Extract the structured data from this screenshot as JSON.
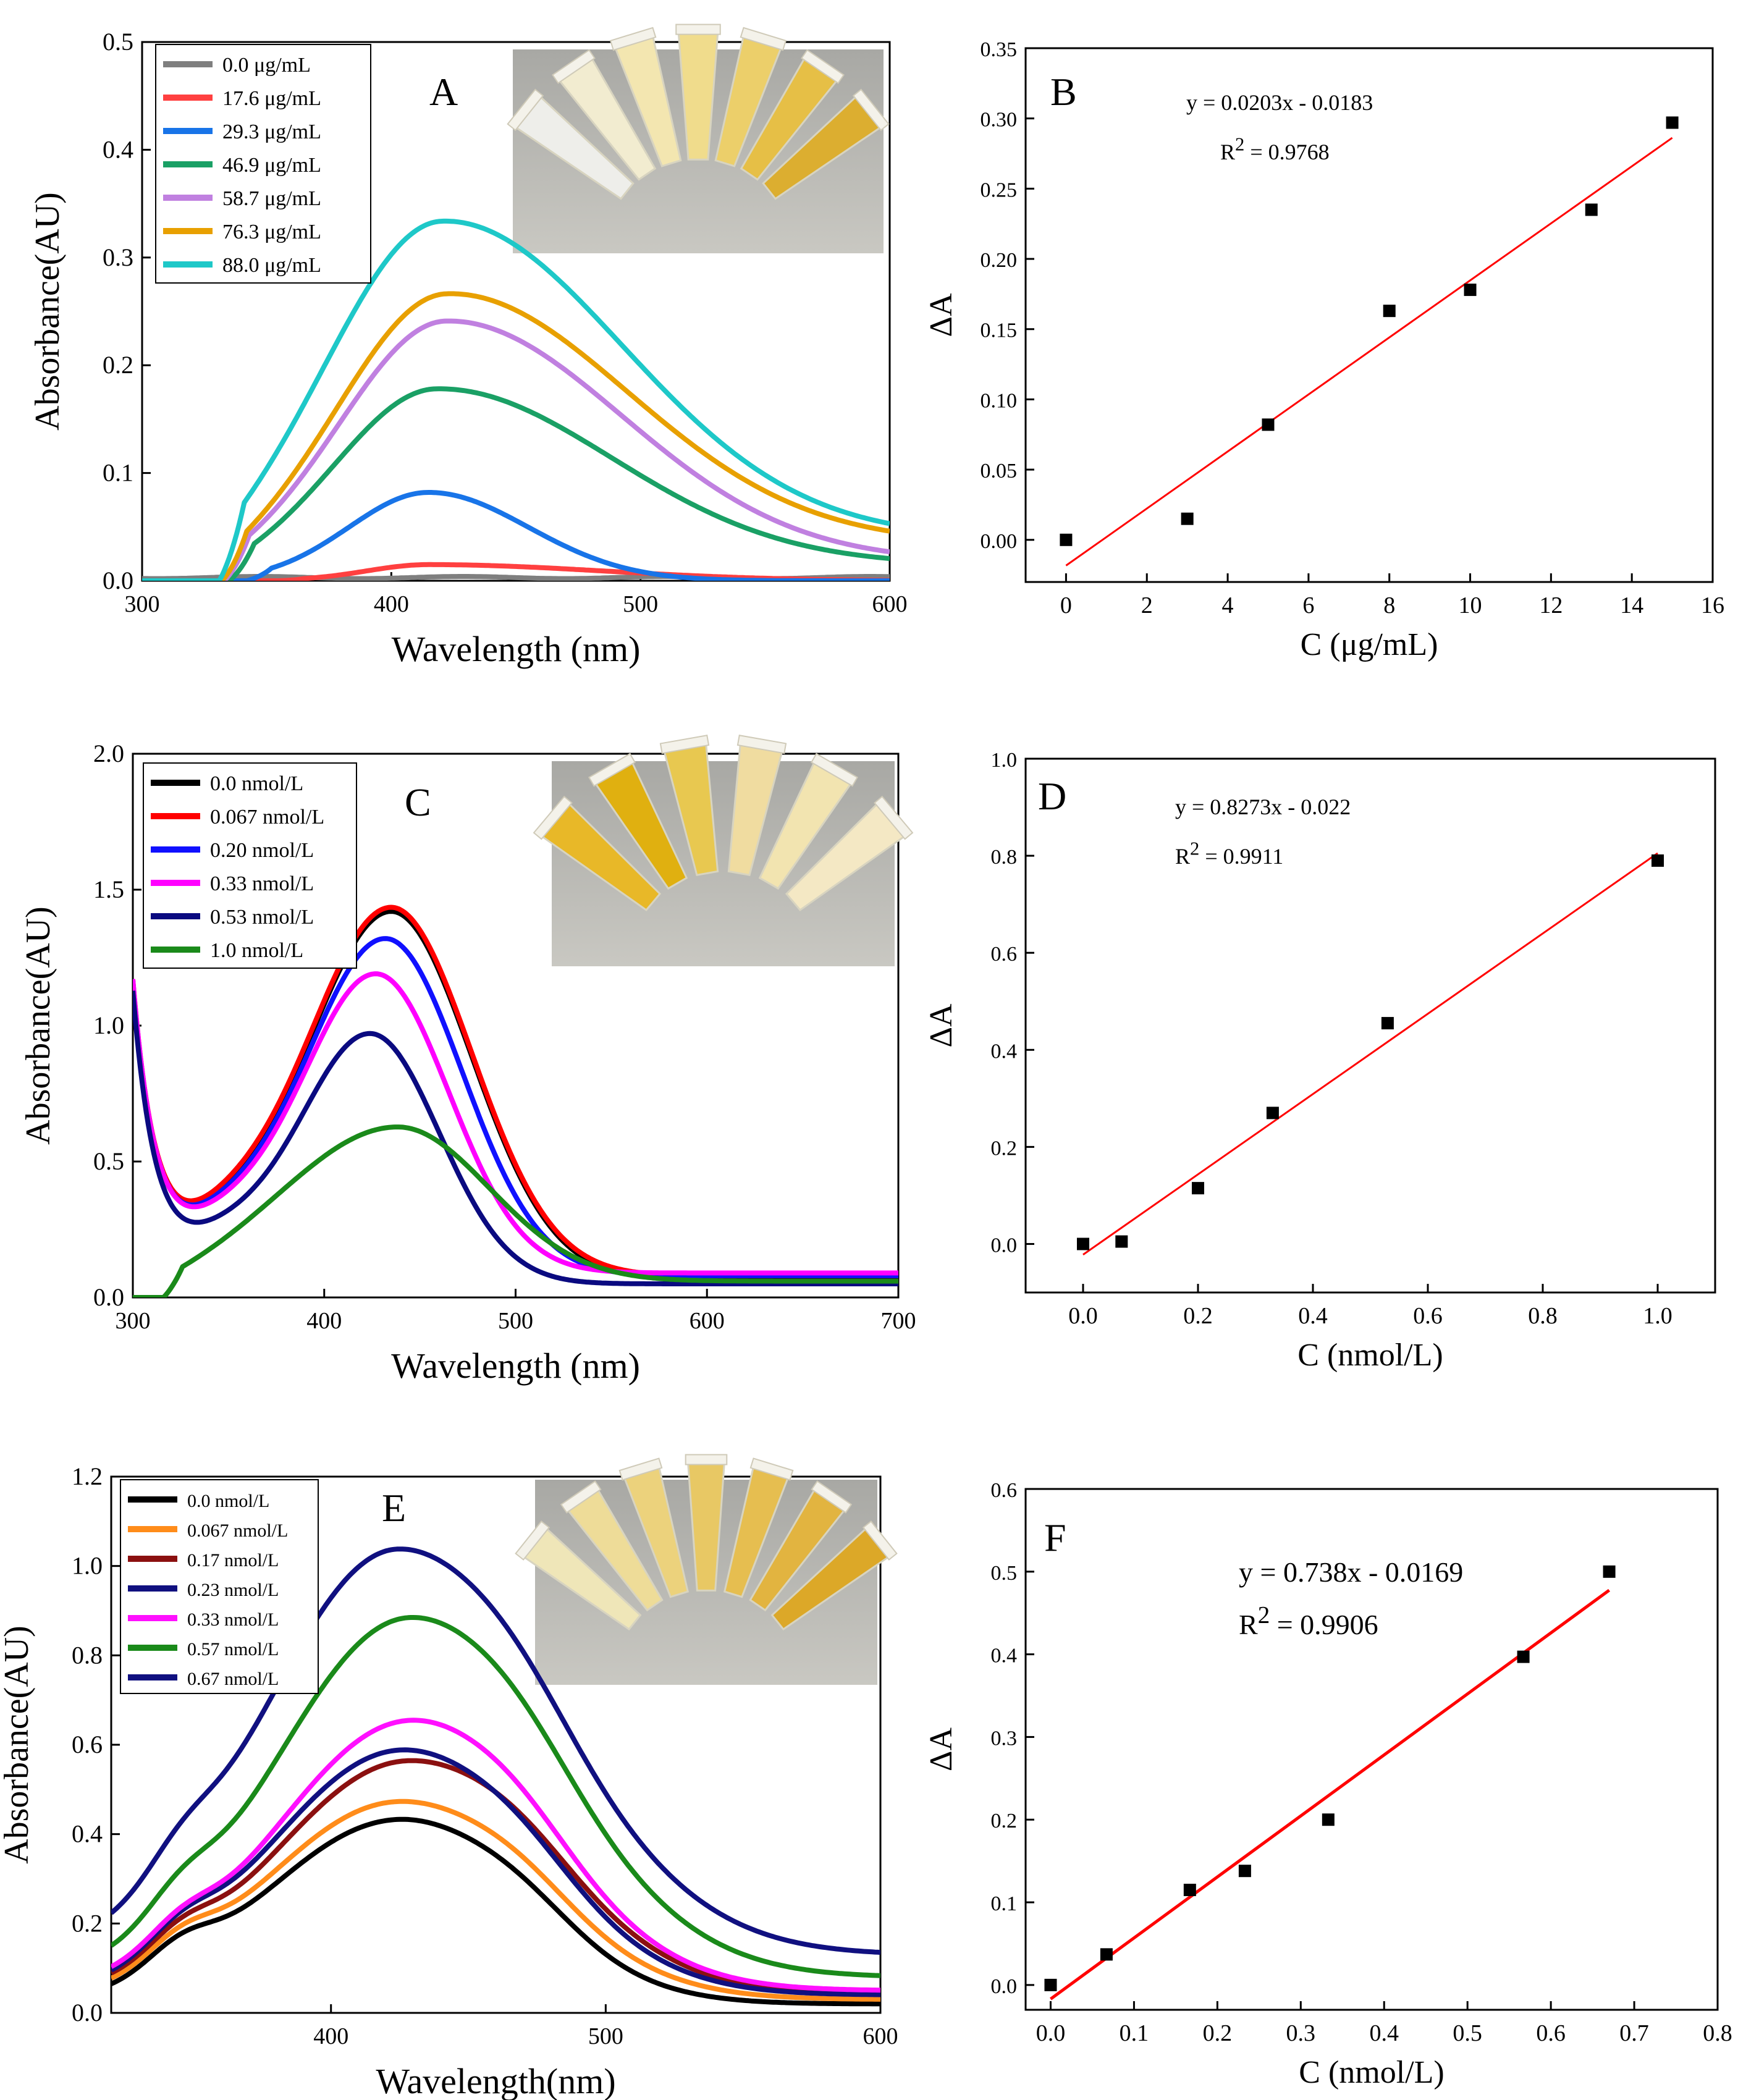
{
  "chart_data": [
    {
      "panel": "A",
      "type": "line",
      "xlabel": "Wavelength (nm)",
      "ylabel": "Absorbance(AU)",
      "xlim": [
        300,
        600
      ],
      "ylim": [
        0,
        0.5
      ],
      "xticks": [
        "300",
        "400",
        "500",
        "600"
      ],
      "yticks": [
        "0.0",
        "0.1",
        "0.2",
        "0.3",
        "0.4",
        "0.5"
      ],
      "legend_position": "top-left",
      "inset": "photo of sample tubes",
      "series": [
        {
          "name": "0.0 μg/mL",
          "color": "#7f7f7f",
          "shape": "flat",
          "start": 300,
          "peak_x": 400,
          "peak": 0.003,
          "sigL": 60,
          "sigR": 150,
          "base": 0.0
        },
        {
          "name": "17.6 μg/mL",
          "color": "#ff4040",
          "shape": "onset",
          "start": 355,
          "peak_x": 415,
          "peak": 0.015,
          "sigL": 25,
          "sigR": 70,
          "base": 0.0
        },
        {
          "name": "29.3 μg/mL",
          "color": "#1874e8",
          "shape": "onset",
          "start": 342,
          "peak_x": 415,
          "peak": 0.082,
          "sigL": 32,
          "sigR": 40,
          "base": 0.0
        },
        {
          "name": "46.9 μg/mL",
          "color": "#1aa065",
          "shape": "onset",
          "start": 335,
          "peak_x": 418,
          "peak": 0.165,
          "sigL": 40,
          "sigR": 70,
          "base": 0.015
        },
        {
          "name": "58.7 μg/mL",
          "color": "#c080e0",
          "shape": "onset",
          "start": 333,
          "peak_x": 422,
          "peak": 0.225,
          "sigL": 42,
          "sigR": 70,
          "base": 0.018
        },
        {
          "name": "76.3 μg/mL",
          "color": "#e8a000",
          "shape": "onset",
          "start": 332,
          "peak_x": 422,
          "peak": 0.235,
          "sigL": 42,
          "sigR": 72,
          "base": 0.035
        },
        {
          "name": "88.0 μg/mL",
          "color": "#1ec8c8",
          "shape": "onset",
          "start": 331,
          "peak_x": 420,
          "peak": 0.298,
          "sigL": 45,
          "sigR": 72,
          "base": 0.04
        }
      ]
    },
    {
      "panel": "B",
      "type": "scatter",
      "xlabel": "C (μg/mL)",
      "ylabel": "ΔA",
      "xlim": [
        -1,
        16
      ],
      "ylim": [
        -0.03,
        0.35
      ],
      "xticks": [
        "0",
        "2",
        "4",
        "6",
        "8",
        "10",
        "12",
        "14",
        "16"
      ],
      "yticks": [
        "0.00",
        "0.05",
        "0.10",
        "0.15",
        "0.20",
        "0.25",
        "0.30",
        "0.35"
      ],
      "equation": "y = 0.0203x - 0.0183",
      "r2_prefix": "R",
      "r2_sup": "2",
      "r2_value": " = 0.9768",
      "fit": {
        "slope": 0.0203,
        "intercept": -0.0183,
        "x_range": [
          0,
          15
        ],
        "color": "#ff0000"
      },
      "points": [
        [
          0,
          0.0
        ],
        [
          3,
          0.015
        ],
        [
          5,
          0.082
        ],
        [
          8,
          0.163
        ],
        [
          10,
          0.178
        ],
        [
          13,
          0.235
        ],
        [
          15,
          0.297
        ]
      ]
    },
    {
      "panel": "C",
      "type": "line",
      "xlabel": "Wavelength (nm)",
      "ylabel": "Absorbance(AU)",
      "xlim": [
        300,
        700
      ],
      "ylim": [
        0,
        2.0
      ],
      "xticks": [
        "300",
        "400",
        "500",
        "600",
        "700"
      ],
      "yticks": [
        "0.0",
        "0.5",
        "1.0",
        "1.5",
        "2.0"
      ],
      "legend_position": "top-left",
      "inset": "photo of sample tubes",
      "series": [
        {
          "name": "0.0 nmol/L",
          "color": "#000000",
          "shape": "dip",
          "start": 300,
          "peak_x": 435,
          "peak": 1.35,
          "sigL": 45,
          "sigR": 42,
          "base": 0.07
        },
        {
          "name": "0.067 nmol/L",
          "color": "#ff0000",
          "shape": "dip",
          "start": 300,
          "peak_x": 435,
          "peak": 1.355,
          "sigL": 45,
          "sigR": 42,
          "base": 0.08
        },
        {
          "name": "0.20 nmol/L",
          "color": "#1010ff",
          "shape": "dip",
          "start": 300,
          "peak_x": 432,
          "peak": 1.24,
          "sigL": 43,
          "sigR": 40,
          "base": 0.08
        },
        {
          "name": "0.33 nmol/L",
          "color": "#ff00ff",
          "shape": "dip",
          "start": 300,
          "peak_x": 427,
          "peak": 1.1,
          "sigL": 40,
          "sigR": 38,
          "base": 0.09
        },
        {
          "name": "0.53 nmol/L",
          "color": "#0a0a80",
          "shape": "dip",
          "start": 300,
          "peak_x": 424,
          "peak": 0.92,
          "sigL": 38,
          "sigR": 36,
          "base": 0.05
        },
        {
          "name": "1.0 nmol/L",
          "color": "#1a8a1a",
          "shape": "onset",
          "start": 316,
          "peak_x": 438,
          "peak": 0.57,
          "sigL": 60,
          "sigR": 48,
          "base": 0.06
        }
      ]
    },
    {
      "panel": "D",
      "type": "scatter",
      "xlabel": "C (nmol/L)",
      "ylabel": "ΔA",
      "xlim": [
        -0.1,
        1.1
      ],
      "ylim": [
        -0.1,
        1.0
      ],
      "xticks": [
        "0.0",
        "0.2",
        "0.4",
        "0.6",
        "0.8",
        "1.0"
      ],
      "yticks": [
        "0.0",
        "0.2",
        "0.4",
        "0.6",
        "0.8",
        "1.0"
      ],
      "equation": "y = 0.8273x - 0.022",
      "r2_prefix": "R",
      "r2_sup": "2",
      "r2_value": " = 0.9911",
      "fit": {
        "slope": 0.8273,
        "intercept": -0.022,
        "x_range": [
          0,
          1.0
        ],
        "color": "#ff0000"
      },
      "points": [
        [
          0,
          0.0
        ],
        [
          0.067,
          0.005
        ],
        [
          0.2,
          0.115
        ],
        [
          0.33,
          0.27
        ],
        [
          0.53,
          0.455
        ],
        [
          1.0,
          0.79
        ]
      ]
    },
    {
      "panel": "E",
      "type": "line",
      "xlabel": "Wavelength(nm)",
      "ylabel": "Absorbance(AU)",
      "xlim": [
        320,
        600
      ],
      "ylim": [
        0,
        1.2
      ],
      "xticks": [
        "400",
        "500",
        "600"
      ],
      "yticks": [
        "0.0",
        "0.2",
        "0.4",
        "0.6",
        "0.8",
        "1.0",
        "1.2"
      ],
      "legend_position": "top-left",
      "inset": "photo of sample tubes",
      "series": [
        {
          "name": "0.0 nmol/L",
          "color": "#000000",
          "shape": "rise",
          "start": 320,
          "peak_x": 424,
          "peak": 0.41,
          "sigL": 48,
          "sigR": 45,
          "base": 0.02,
          "shoulder": 0.05
        },
        {
          "name": "0.067 nmol/L",
          "color": "#ff8c1a",
          "shape": "rise",
          "start": 320,
          "peak_x": 424,
          "peak": 0.44,
          "sigL": 48,
          "sigR": 48,
          "base": 0.03,
          "shoulder": 0.05
        },
        {
          "name": "0.17 nmol/L",
          "color": "#8b1010",
          "shape": "rise",
          "start": 320,
          "peak_x": 427,
          "peak": 0.52,
          "sigL": 48,
          "sigR": 50,
          "base": 0.04,
          "shoulder": 0.05
        },
        {
          "name": "0.23 nmol/L",
          "color": "#10107f",
          "shape": "rise",
          "start": 320,
          "peak_x": 425,
          "peak": 0.545,
          "sigL": 48,
          "sigR": 48,
          "base": 0.04,
          "shoulder": 0.05
        },
        {
          "name": "0.33 nmol/L",
          "color": "#ff10ff",
          "shape": "rise",
          "start": 320,
          "peak_x": 428,
          "peak": 0.6,
          "sigL": 48,
          "sigR": 48,
          "base": 0.05,
          "shoulder": 0.05
        },
        {
          "name": "0.57 nmol/L",
          "color": "#1a8a1a",
          "shape": "rise",
          "start": 320,
          "peak_x": 428,
          "peak": 0.8,
          "sigL": 48,
          "sigR": 52,
          "base": 0.08,
          "shoulder": 0.06
        },
        {
          "name": "0.67 nmol/L",
          "color": "#101080",
          "shape": "rise",
          "start": 320,
          "peak_x": 424,
          "peak": 0.905,
          "sigL": 48,
          "sigR": 55,
          "base": 0.13,
          "shoulder": 0.06
        }
      ]
    },
    {
      "panel": "F",
      "type": "scatter",
      "xlabel": "C (nmol/L)",
      "ylabel": "ΔA",
      "xlim": [
        -0.03,
        0.8
      ],
      "ylim": [
        -0.03,
        0.6
      ],
      "xticks": [
        "0.0",
        "0.1",
        "0.2",
        "0.3",
        "0.4",
        "0.5",
        "0.6",
        "0.7",
        "0.8"
      ],
      "yticks": [
        "0.0",
        "0.1",
        "0.2",
        "0.3",
        "0.4",
        "0.5",
        "0.6"
      ],
      "equation": "y = 0.738x - 0.0169",
      "r2_prefix": "R",
      "r2_sup": "2",
      "r2_value": " = 0.9906",
      "fit": {
        "slope": 0.738,
        "intercept": -0.0169,
        "x_range": [
          0,
          0.67
        ],
        "color": "#ff0000"
      },
      "points": [
        [
          0,
          0.0
        ],
        [
          0.067,
          0.037
        ],
        [
          0.167,
          0.115
        ],
        [
          0.233,
          0.138
        ],
        [
          0.333,
          0.2
        ],
        [
          0.567,
          0.397
        ],
        [
          0.67,
          0.5
        ]
      ]
    }
  ]
}
